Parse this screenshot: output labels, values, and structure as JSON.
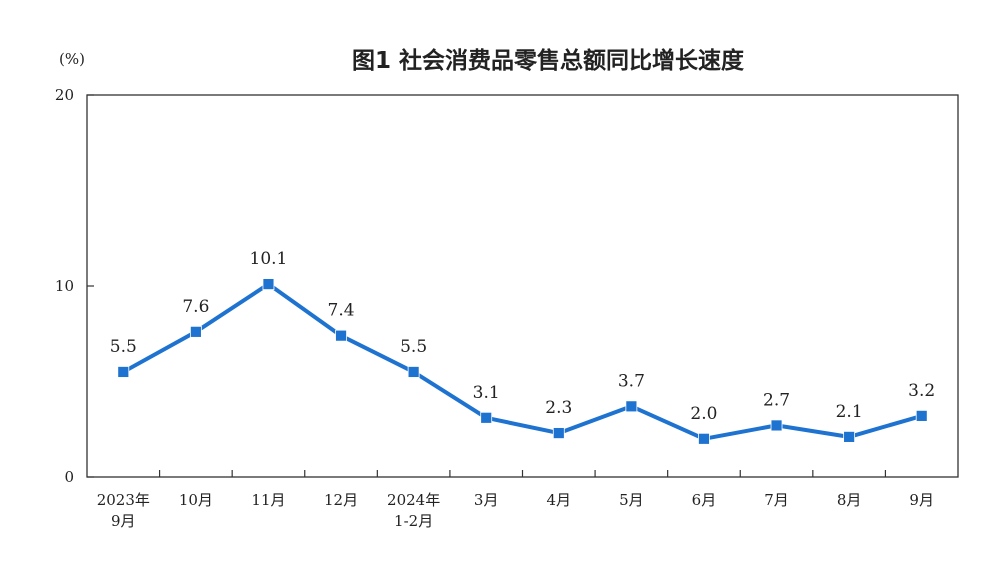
{
  "chart_data": {
    "type": "line",
    "title": "图1  社会消费品零售总额同比增长速度",
    "ylabel": "(%)",
    "ylim": [
      0,
      20
    ],
    "yticks": [
      0,
      10,
      20
    ],
    "grid": false,
    "categories": [
      [
        "2023年",
        "9月"
      ],
      [
        "10月"
      ],
      [
        "11月"
      ],
      [
        "12月"
      ],
      [
        "2024年",
        "1-2月"
      ],
      [
        "3月"
      ],
      [
        "4月"
      ],
      [
        "5月"
      ],
      [
        "6月"
      ],
      [
        "7月"
      ],
      [
        "8月"
      ],
      [
        "9月"
      ]
    ],
    "series": [
      {
        "values": [
          5.5,
          7.6,
          10.1,
          7.4,
          5.5,
          3.1,
          2.3,
          3.7,
          2.0,
          2.7,
          2.1,
          3.2
        ],
        "labels": [
          "5.5",
          "7.6",
          "10.1",
          "7.4",
          "5.5",
          "3.1",
          "2.3",
          "3.7",
          "2.0",
          "2.7",
          "2.1",
          "3.2"
        ],
        "color": "#1f73d0",
        "marker": "square"
      }
    ]
  }
}
